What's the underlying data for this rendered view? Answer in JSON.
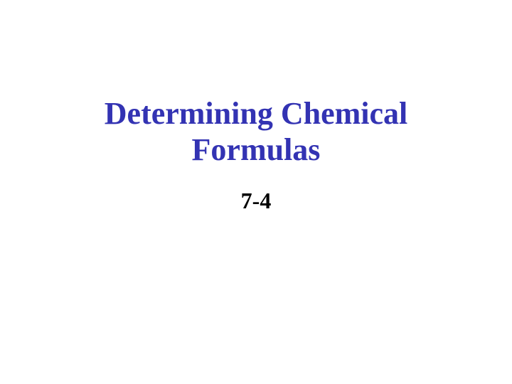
{
  "slide": {
    "title_line1": "Determining Chemical",
    "title_line2": "Formulas",
    "subtitle": "7-4",
    "title_color": "#3333b3",
    "subtitle_color": "#000000",
    "background_color": "#ffffff",
    "title_fontsize": 44,
    "subtitle_fontsize": 32,
    "font_family": "Times New Roman"
  }
}
